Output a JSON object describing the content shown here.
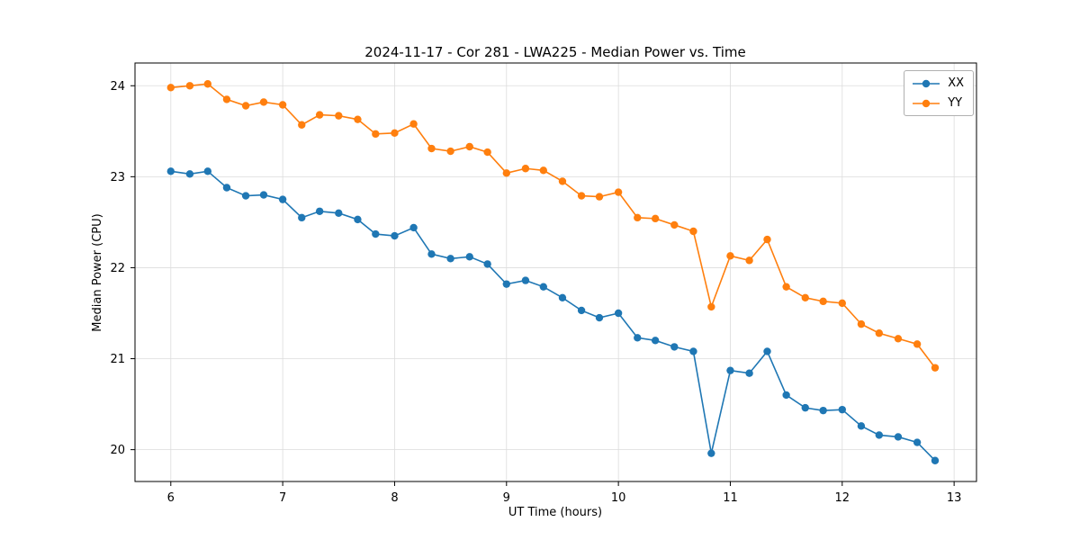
{
  "chart_data": {
    "type": "line",
    "title": "2024-11-17 - Cor 281 - LWA225 - Median Power vs. Time",
    "xlabel": "UT Time (hours)",
    "ylabel": "Median Power (CPU)",
    "xlim": [
      5.68,
      13.2
    ],
    "ylim": [
      19.65,
      24.25
    ],
    "xticks": [
      6,
      7,
      8,
      9,
      10,
      11,
      12,
      13
    ],
    "yticks": [
      20,
      21,
      22,
      23,
      24
    ],
    "grid": true,
    "legend_position": "upper right",
    "marker": "circle",
    "x": [
      6.0,
      6.17,
      6.33,
      6.5,
      6.67,
      6.83,
      7.0,
      7.17,
      7.33,
      7.5,
      7.67,
      7.83,
      8.0,
      8.17,
      8.33,
      8.5,
      8.67,
      8.83,
      9.0,
      9.17,
      9.33,
      9.5,
      9.67,
      9.83,
      10.0,
      10.17,
      10.33,
      10.5,
      10.67,
      10.83,
      11.0,
      11.17,
      11.33,
      11.5,
      11.67,
      11.83,
      12.0,
      12.17,
      12.33,
      12.5,
      12.67,
      12.83
    ],
    "series": [
      {
        "name": "XX",
        "color": "#1f77b4",
        "values": [
          23.06,
          23.03,
          23.06,
          22.88,
          22.79,
          22.8,
          22.75,
          22.55,
          22.62,
          22.6,
          22.53,
          22.37,
          22.35,
          22.44,
          22.15,
          22.1,
          22.12,
          22.04,
          21.82,
          21.86,
          21.79,
          21.67,
          21.53,
          21.45,
          21.5,
          21.23,
          21.2,
          21.13,
          21.08,
          19.96,
          20.87,
          20.84,
          21.08,
          20.6,
          20.46,
          20.43,
          20.44,
          20.26,
          20.16,
          20.14,
          20.08,
          19.88
        ]
      },
      {
        "name": "YY",
        "color": "#ff7f0e",
        "values": [
          23.98,
          24.0,
          24.02,
          23.85,
          23.78,
          23.82,
          23.79,
          23.57,
          23.68,
          23.67,
          23.63,
          23.47,
          23.48,
          23.58,
          23.31,
          23.28,
          23.33,
          23.27,
          23.04,
          23.09,
          23.07,
          22.95,
          22.79,
          22.78,
          22.83,
          22.55,
          22.54,
          22.47,
          22.4,
          21.57,
          22.13,
          22.08,
          22.31,
          21.79,
          21.67,
          21.63,
          21.61,
          21.38,
          21.28,
          21.22,
          21.16,
          20.9
        ]
      }
    ]
  }
}
